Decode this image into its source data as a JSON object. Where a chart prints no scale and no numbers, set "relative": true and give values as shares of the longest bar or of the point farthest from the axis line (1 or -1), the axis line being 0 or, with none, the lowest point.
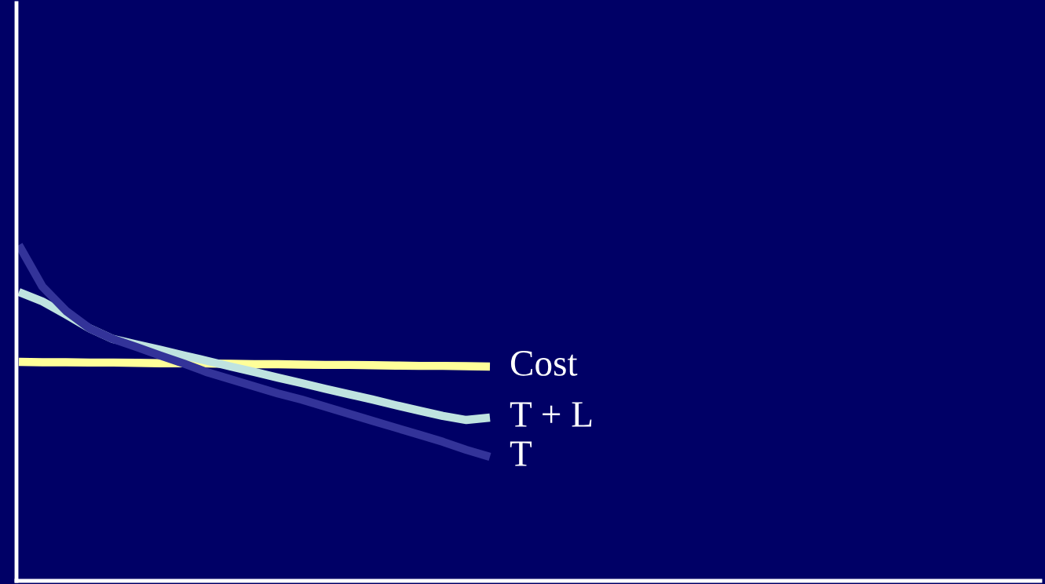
{
  "chart_data": {
    "type": "line",
    "relative": true,
    "grid": false,
    "legend": false,
    "marker": "none",
    "line_style": "solid",
    "categories": [
      null,
      null,
      null,
      null,
      null,
      null,
      null,
      null,
      null,
      null,
      null,
      null,
      null,
      null,
      null,
      null,
      null,
      null,
      null,
      null,
      null,
      null,
      null,
      null,
      null,
      null,
      null,
      null,
      null,
      null,
      null,
      null,
      null,
      null,
      null,
      null,
      null,
      null,
      null,
      null,
      null,
      null,
      null,
      null
    ],
    "series": [
      {
        "name": "Cost",
        "color": "#ffff99",
        "values": [
          0.652,
          0.651,
          0.651,
          0.65,
          0.65,
          0.649,
          0.648,
          0.648,
          0.647,
          0.646,
          0.645,
          0.645,
          0.644,
          0.643,
          0.643,
          0.642,
          0.641,
          0.64,
          0.64,
          0.639,
          0.638,
          null,
          null,
          null,
          null,
          null,
          null,
          null,
          null,
          null,
          null,
          null,
          null,
          null,
          null,
          null,
          null,
          null,
          null,
          null,
          null,
          null,
          null,
          null
        ]
      },
      {
        "name": "T + L",
        "color": "#bfe3e0",
        "values": [
          0.86,
          0.832,
          0.793,
          0.752,
          0.72,
          0.704,
          0.688,
          0.671,
          0.655,
          0.638,
          0.622,
          0.605,
          0.589,
          0.572,
          0.556,
          0.54,
          0.523,
          0.507,
          0.491,
          0.479,
          0.486,
          null,
          null,
          null,
          null,
          null,
          null,
          null,
          null,
          null,
          null,
          null,
          null,
          null,
          null,
          null,
          null,
          null,
          null,
          null,
          null,
          null,
          null,
          null
        ]
      },
      {
        "name": "T",
        "color": "#333399",
        "values": [
          1,
          0.876,
          0.804,
          0.752,
          0.72,
          0.696,
          0.671,
          0.647,
          0.621,
          0.6,
          0.579,
          0.558,
          0.54,
          0.519,
          0.498,
          0.477,
          0.456,
          0.435,
          0.414,
          0.39,
          0.369,
          null,
          null,
          null,
          null,
          null,
          null,
          null,
          null,
          null,
          null,
          null,
          null,
          null,
          null,
          null,
          null,
          null,
          null,
          null,
          null,
          null,
          null,
          null
        ]
      }
    ]
  }
}
